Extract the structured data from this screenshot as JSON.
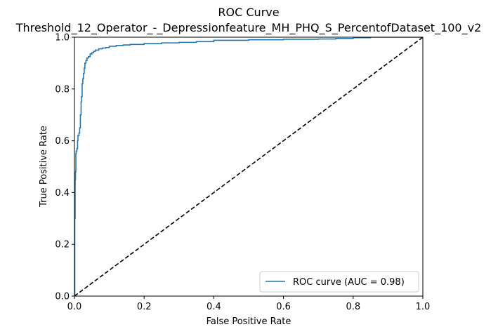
{
  "chart_data": {
    "type": "line",
    "title": "ROC Curve",
    "subtitle": "Threshold_12_Operator_-_Depressionfeature_MH_PHQ_S_PercentofDataset_100_v2",
    "xlabel": "False Positive Rate",
    "ylabel": "True Positive Rate",
    "xlim": [
      0,
      1
    ],
    "ylim": [
      0,
      1
    ],
    "xticks": [
      "0.0",
      "0.2",
      "0.4",
      "0.6",
      "0.8",
      "1.0"
    ],
    "yticks": [
      "0.0",
      "0.2",
      "0.4",
      "0.6",
      "0.8",
      "1.0"
    ],
    "grid": false,
    "legend_position": "lower-right",
    "series": [
      {
        "name": "ROC curve (AUC = 0.98)",
        "color": "#1f77b4",
        "style": "solid",
        "x": [
          0,
          0.001,
          0.002,
          0.003,
          0.004,
          0.005,
          0.007,
          0.009,
          0.01,
          0.013,
          0.015,
          0.017,
          0.019,
          0.02,
          0.022,
          0.024,
          0.026,
          0.028,
          0.03,
          0.033,
          0.036,
          0.04,
          0.045,
          0.05,
          0.055,
          0.06,
          0.07,
          0.08,
          0.09,
          0.1,
          0.12,
          0.14,
          0.16,
          0.2,
          0.25,
          0.3,
          0.35,
          0.4,
          0.5,
          0.6,
          0.7,
          0.75,
          0.8,
          0.85,
          0.9,
          1.0
        ],
        "y": [
          0,
          0.3,
          0.45,
          0.48,
          0.55,
          0.56,
          0.57,
          0.6,
          0.62,
          0.63,
          0.65,
          0.7,
          0.75,
          0.77,
          0.82,
          0.84,
          0.86,
          0.88,
          0.9,
          0.91,
          0.92,
          0.925,
          0.935,
          0.94,
          0.945,
          0.95,
          0.955,
          0.958,
          0.96,
          0.965,
          0.968,
          0.97,
          0.972,
          0.975,
          0.978,
          0.98,
          0.983,
          0.988,
          0.99,
          0.992,
          0.993,
          0.995,
          0.998,
          1.0,
          1.0,
          1.0
        ]
      },
      {
        "name": "",
        "color": "#000000",
        "style": "dashed",
        "x": [
          0,
          1
        ],
        "y": [
          0,
          1
        ]
      }
    ]
  }
}
